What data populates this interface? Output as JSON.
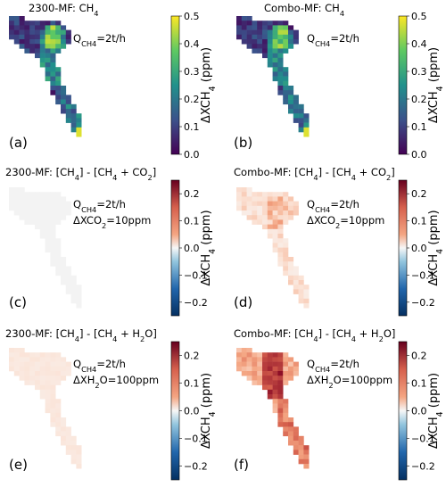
{
  "chart_data": [
    {
      "type": "heatmap",
      "panel_label": "(a)",
      "title": "2300-MF: CH4",
      "title_parts": {
        "main": "2300-MF: CH",
        "sub": "4"
      },
      "annotations": [
        {
          "prefix": "Q",
          "sub": "CH4",
          "suffix": "=2t/h"
        }
      ],
      "colorbar": {
        "label": "ΔXCH4 (ppm)",
        "label_parts": {
          "main": "ΔXCH",
          "sub": "4",
          "rest": " (ppm)"
        },
        "colormap": "viridis",
        "range": [
          0.0,
          0.5
        ],
        "ticks": [
          "0.5",
          "0.4",
          "0.3",
          "0.2",
          "0.1",
          "0.0"
        ]
      },
      "plume_intensity": "high-viridis"
    },
    {
      "type": "heatmap",
      "panel_label": "(b)",
      "title": "Combo-MF: CH4",
      "title_parts": {
        "main": "Combo-MF: CH",
        "sub": "4"
      },
      "annotations": [
        {
          "prefix": "Q",
          "sub": "CH4",
          "suffix": "=2t/h"
        }
      ],
      "colorbar": {
        "label": "ΔXCH4 (ppm)",
        "label_parts": {
          "main": "ΔXCH",
          "sub": "4",
          "rest": " (ppm)"
        },
        "colormap": "viridis",
        "range": [
          0.0,
          0.5
        ],
        "ticks": [
          "0.5",
          "0.4",
          "0.3",
          "0.2",
          "0.1",
          "0.0"
        ]
      },
      "plume_intensity": "high-viridis"
    },
    {
      "type": "heatmap",
      "panel_label": "(c)",
      "title": "2300-MF: [CH4] - [CH4 + CO2]",
      "title_parts": {
        "t1": "2300-MF: [CH",
        "s1": "4",
        "t2": "] - [CH",
        "s2": "4",
        "t3": " + CO",
        "s3": "2",
        "t4": "]"
      },
      "annotations": [
        {
          "prefix": "Q",
          "sub": "CH4",
          "suffix": "=2t/h"
        },
        {
          "prefix": "ΔXCO",
          "sub": "2",
          "suffix": "=10ppm"
        }
      ],
      "colorbar": {
        "label": "ΔXCH4 (ppm)",
        "label_parts": {
          "main": "ΔXCH",
          "sub": "4",
          "rest": " (ppm)"
        },
        "colormap": "RdBu_r",
        "range": [
          -0.25,
          0.25
        ],
        "ticks": [
          "0.2",
          "0.1",
          "0.0",
          "−0.1",
          "−0.2"
        ]
      },
      "plume_intensity": "near-zero"
    },
    {
      "type": "heatmap",
      "panel_label": "(d)",
      "title": "Combo-MF: [CH4] - [CH4 + CO2]",
      "title_parts": {
        "t1": "Combo-MF: [CH",
        "s1": "4",
        "t2": "] - [CH",
        "s2": "4",
        "t3": " + CO",
        "s3": "2",
        "t4": "]"
      },
      "annotations": [
        {
          "prefix": "Q",
          "sub": "CH4",
          "suffix": "=2t/h"
        },
        {
          "prefix": "ΔXCO",
          "sub": "2",
          "suffix": "=10ppm"
        }
      ],
      "colorbar": {
        "label": "ΔXCH4 (ppm)",
        "label_parts": {
          "main": "ΔXCH",
          "sub": "4",
          "rest": " (ppm)"
        },
        "colormap": "RdBu_r",
        "range": [
          -0.25,
          0.25
        ],
        "ticks": [
          "0.2",
          "0.1",
          "0.0",
          "−0.1",
          "−0.2"
        ]
      },
      "plume_intensity": "light-red"
    },
    {
      "type": "heatmap",
      "panel_label": "(e)",
      "title": "2300-MF: [CH4] - [CH4 + H2O]",
      "title_parts": {
        "t1": "2300-MF: [CH",
        "s1": "4",
        "t2": "] - [CH",
        "s2": "4",
        "t3": " + H",
        "s3": "2",
        "t4": "O]"
      },
      "annotations": [
        {
          "prefix": "Q",
          "sub": "CH4",
          "suffix": "=2t/h"
        },
        {
          "prefix": "ΔXH",
          "sub": "2",
          "suffix": "O=100ppm"
        }
      ],
      "colorbar": {
        "label": "ΔXCH4 (ppm)",
        "label_parts": {
          "main": "ΔXCH",
          "sub": "4",
          "rest": " (ppm)"
        },
        "colormap": "RdBu_r",
        "range": [
          -0.25,
          0.25
        ],
        "ticks": [
          "0.2",
          "0.1",
          "0.0",
          "−0.1",
          "−0.2"
        ]
      },
      "plume_intensity": "very-light-red"
    },
    {
      "type": "heatmap",
      "panel_label": "(f)",
      "title": "Combo-MF: [CH4] - [CH4 + H2O]",
      "title_parts": {
        "t1": "Combo-MF: [CH",
        "s1": "4",
        "t2": "] - [CH",
        "s2": "4",
        "t3": " + H",
        "s3": "2",
        "t4": "O]"
      },
      "annotations": [
        {
          "prefix": "Q",
          "sub": "CH4",
          "suffix": "=2t/h"
        },
        {
          "prefix": "ΔXH",
          "sub": "2",
          "suffix": "O=100ppm"
        }
      ],
      "colorbar": {
        "label": "ΔXCH4 (ppm)",
        "label_parts": {
          "main": "ΔXCH",
          "sub": "4",
          "rest": " (ppm)"
        },
        "colormap": "RdBu_r",
        "range": [
          -0.25,
          0.25
        ],
        "ticks": [
          "0.2",
          "0.1",
          "0.0",
          "−0.1",
          "−0.2"
        ]
      },
      "plume_intensity": "strong-red"
    }
  ]
}
